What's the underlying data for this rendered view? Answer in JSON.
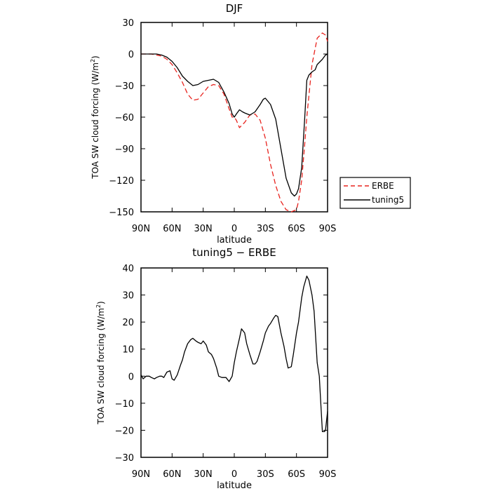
{
  "chart_data": [
    {
      "type": "line",
      "title": "DJF",
      "xlabel": "latitude",
      "ylabel": "TOA SW cloud forcing (W/m²)",
      "xlim": [
        90,
        -90
      ],
      "ylim": [
        -150,
        30
      ],
      "x_ticks": [
        90,
        60,
        30,
        0,
        -30,
        -60,
        -90
      ],
      "x_tick_labels": [
        "90N",
        "60N",
        "30N",
        "0",
        "30S",
        "60S",
        "90S"
      ],
      "y_ticks": [
        30,
        0,
        -30,
        -60,
        -90,
        -120,
        -150
      ],
      "y_tick_labels": [
        "30",
        "0",
        "−30",
        "−60",
        "−90",
        "−120",
        "−150"
      ],
      "legend": "outside-right",
      "series": [
        {
          "name": "ERBE",
          "color": "#e8231e",
          "dash": "dashed",
          "x": [
            90,
            85,
            80,
            75,
            70,
            65,
            60,
            55,
            50,
            45,
            40,
            35,
            30,
            25,
            20,
            15,
            10,
            5,
            2,
            0,
            -2,
            -5,
            -10,
            -15,
            -20,
            -25,
            -30,
            -35,
            -40,
            -45,
            -50,
            -55,
            -60,
            -62,
            -65,
            -68,
            -70,
            -75,
            -80,
            -85,
            -88,
            -90
          ],
          "y": [
            0,
            0,
            0,
            -1,
            -2,
            -5,
            -10,
            -18,
            -27,
            -38,
            -44,
            -43,
            -37,
            -31,
            -29,
            -30,
            -38,
            -52,
            -60,
            -60,
            -63,
            -70,
            -65,
            -58,
            -57,
            -63,
            -80,
            -105,
            -125,
            -140,
            -148,
            -150,
            -148,
            -140,
            -120,
            -85,
            -60,
            -10,
            15,
            20,
            18,
            12
          ]
        },
        {
          "name": "tuning5",
          "color": "#000000",
          "dash": "solid",
          "x": [
            90,
            85,
            80,
            75,
            70,
            65,
            60,
            55,
            50,
            45,
            40,
            35,
            30,
            25,
            20,
            15,
            10,
            5,
            2,
            0,
            -2,
            -5,
            -8,
            -10,
            -15,
            -20,
            -25,
            -28,
            -30,
            -35,
            -40,
            -45,
            -50,
            -55,
            -58,
            -60,
            -62,
            -65,
            -68,
            -70,
            -72,
            -75,
            -78,
            -80,
            -85,
            -88,
            -90
          ],
          "y": [
            0,
            0,
            0,
            0,
            -1,
            -3,
            -7,
            -13,
            -21,
            -26,
            -30,
            -29,
            -26,
            -25,
            -24,
            -27,
            -36,
            -47,
            -57,
            -60,
            -57,
            -53,
            -55,
            -56,
            -58,
            -55,
            -48,
            -43,
            -42,
            -48,
            -62,
            -90,
            -118,
            -132,
            -135,
            -133,
            -128,
            -108,
            -60,
            -25,
            -20,
            -17,
            -15,
            -10,
            -5,
            -1,
            0
          ]
        }
      ]
    },
    {
      "type": "line",
      "title": "tuning5 − ERBE",
      "xlabel": "latitude",
      "ylabel": "TOA SW cloud forcing (W/m²)",
      "xlim": [
        90,
        -90
      ],
      "ylim": [
        -30,
        40
      ],
      "x_ticks": [
        90,
        60,
        30,
        0,
        -30,
        -60,
        -90
      ],
      "x_tick_labels": [
        "90N",
        "60N",
        "30N",
        "0",
        "30S",
        "60S",
        "90S"
      ],
      "y_ticks": [
        40,
        30,
        20,
        10,
        0,
        -10,
        -20,
        -30
      ],
      "y_tick_labels": [
        "40",
        "30",
        "20",
        "10",
        "0",
        "−10",
        "−20",
        "−30"
      ],
      "series": [
        {
          "color": "#000000",
          "dash": "solid",
          "x": [
            90,
            88,
            85,
            82,
            80,
            77,
            75,
            72,
            70,
            68,
            65,
            62,
            60,
            58,
            55,
            52,
            50,
            48,
            45,
            42,
            40,
            37,
            35,
            32,
            30,
            27,
            25,
            22,
            20,
            17,
            15,
            12,
            10,
            8,
            5,
            2,
            0,
            -2,
            -5,
            -7,
            -10,
            -12,
            -15,
            -18,
            -20,
            -22,
            -25,
            -28,
            -30,
            -33,
            -35,
            -38,
            -40,
            -42,
            -45,
            -48,
            -50,
            -52,
            -55,
            -57,
            -60,
            -62,
            -65,
            -67,
            -70,
            -72,
            -75,
            -77,
            -80,
            -82,
            -85,
            -87,
            -88,
            -90
          ],
          "y": [
            0.5,
            -1,
            0,
            0,
            -0.5,
            -1,
            -0.5,
            0,
            0,
            -0.5,
            1.5,
            2,
            -1,
            -1.5,
            0.5,
            4,
            6,
            9,
            12,
            13.5,
            14,
            13,
            12.5,
            12,
            13,
            11.5,
            9,
            8,
            6.5,
            3,
            0,
            -0.5,
            -0.5,
            -0.5,
            -2,
            0,
            5,
            9,
            14,
            17.5,
            16,
            12,
            8,
            4.5,
            4.5,
            5.5,
            9,
            13,
            16,
            18.5,
            19.5,
            21.5,
            22.5,
            22,
            16,
            11,
            6.5,
            3,
            3.5,
            8,
            16,
            20,
            29,
            33,
            37,
            35.5,
            30,
            24,
            5,
            0,
            -20.5,
            -20.5,
            -20,
            -13
          ]
        }
      ]
    }
  ]
}
